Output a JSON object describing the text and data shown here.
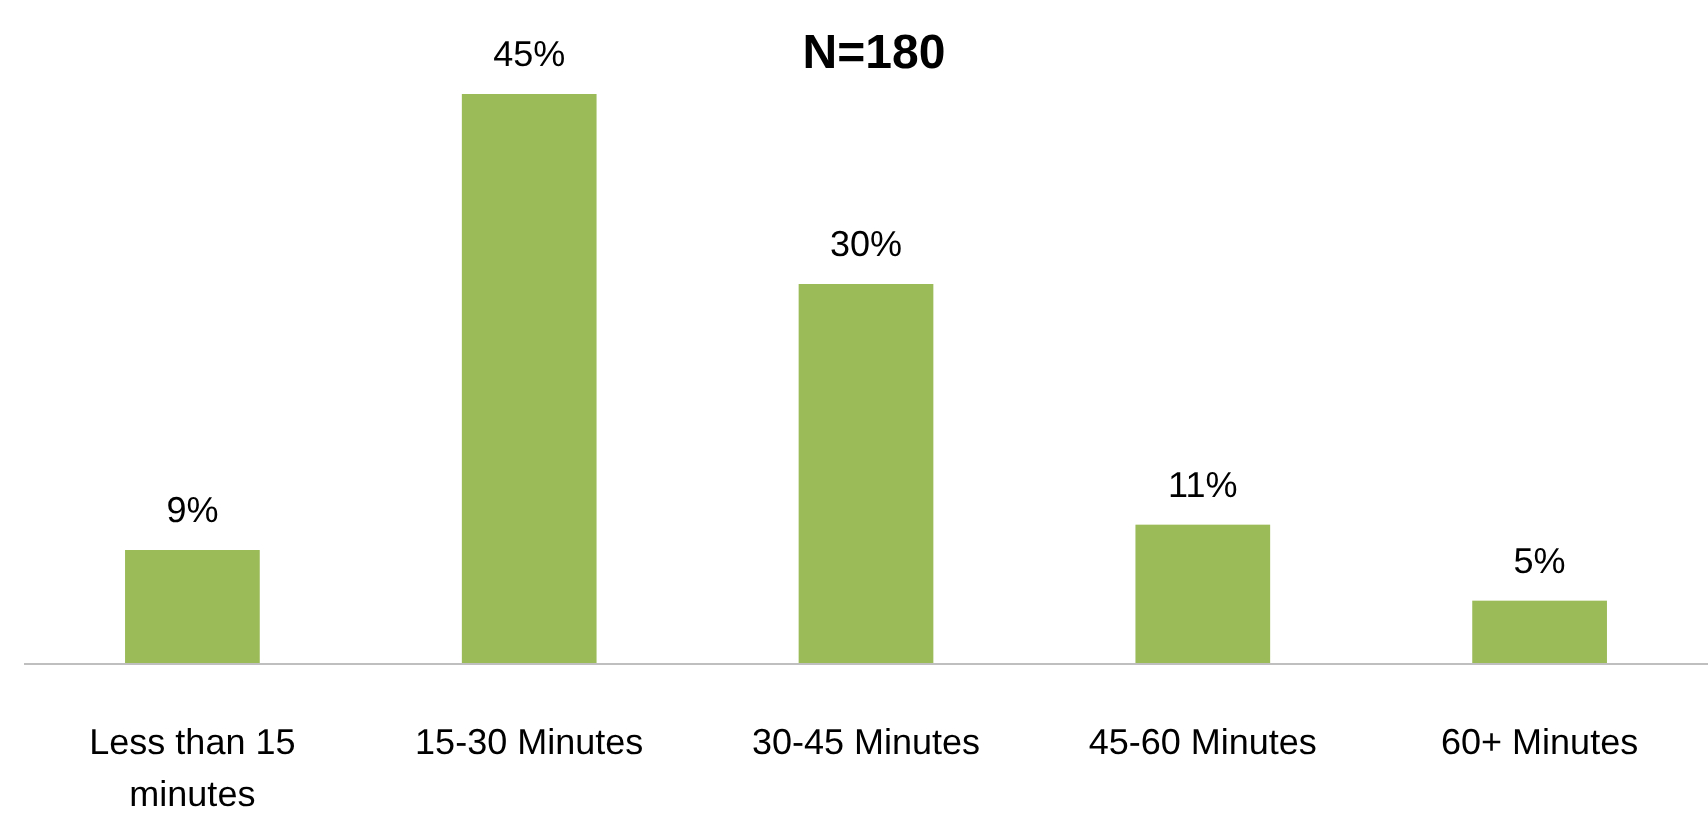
{
  "chart_data": {
    "type": "bar",
    "title": "N=180",
    "categories": [
      "Less than 15 minutes",
      "15-30 Minutes",
      "30-45 Minutes",
      "45-60 Minutes",
      "60+ Minutes"
    ],
    "values": [
      9,
      45,
      30,
      11,
      5
    ],
    "value_labels": [
      "9%",
      "45%",
      "30%",
      "11%",
      "5%"
    ],
    "color": "#9bbb59"
  }
}
